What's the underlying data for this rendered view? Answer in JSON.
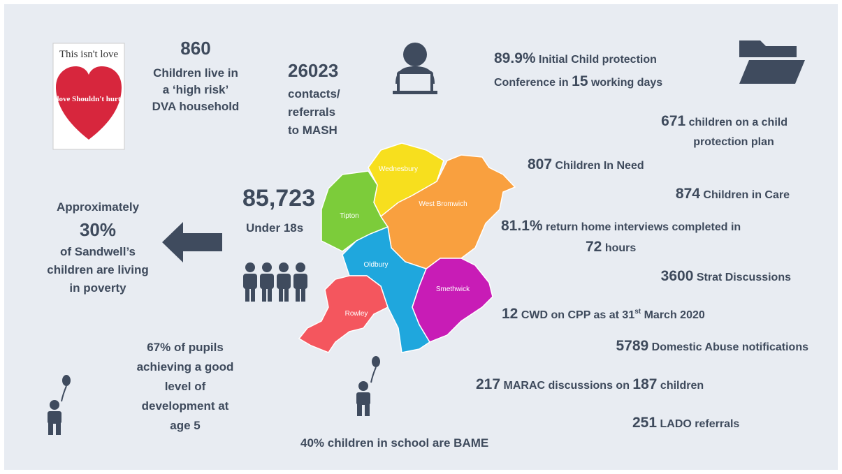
{
  "poster": {
    "title": "This isn't love",
    "slogan": "love Shouldn't hurt"
  },
  "dva": {
    "number": "860",
    "lines": [
      "Children live in",
      "a ‘high risk’",
      "DVA household"
    ]
  },
  "mash": {
    "number": "26023",
    "lines": [
      "contacts/",
      "referrals",
      "to MASH"
    ]
  },
  "icpc": {
    "number": "89.9%",
    "text1": "Initial Child protection",
    "text2": "Conference in",
    "days": "15",
    "text3": "working days"
  },
  "cpp": {
    "number": "671",
    "text1": "children on a child",
    "text2": "protection plan"
  },
  "cin": {
    "number": "807",
    "text": "Children In Need"
  },
  "cic": {
    "number": "874",
    "text": "Children in Care"
  },
  "rhi": {
    "number": "81.1%",
    "text1": "return home interviews completed in",
    "hours": "72",
    "text2": "hours"
  },
  "strat": {
    "number": "3600",
    "text": "Strat Discussions"
  },
  "cwd": {
    "number": "12",
    "text1": "CWD on CPP as at 31",
    "sup": "st",
    "text2": "March 2020"
  },
  "da": {
    "number": "5789",
    "text": "Domestic Abuse notifications"
  },
  "marac": {
    "number": "217",
    "text1": "MARAC discussions on",
    "children": "187",
    "text2": "children"
  },
  "lado": {
    "number": "251",
    "text": "LADO referrals"
  },
  "bame": {
    "text": "40% children in school are BAME"
  },
  "eyfs": {
    "lines": [
      "67% of pupils",
      "achieving a good",
      "level of",
      "development at",
      "age 5"
    ]
  },
  "under18": {
    "number": "85,723",
    "text": "Under 18s"
  },
  "poverty": {
    "line1": "Approximately",
    "number": "30%",
    "lines": [
      "of Sandwell’s",
      "children are living",
      "in poverty"
    ]
  },
  "map": {
    "regions": [
      "Wednesbury",
      "Tipton",
      "West Bromwich",
      "Oldbury",
      "Smethwick",
      "Rowley"
    ]
  }
}
